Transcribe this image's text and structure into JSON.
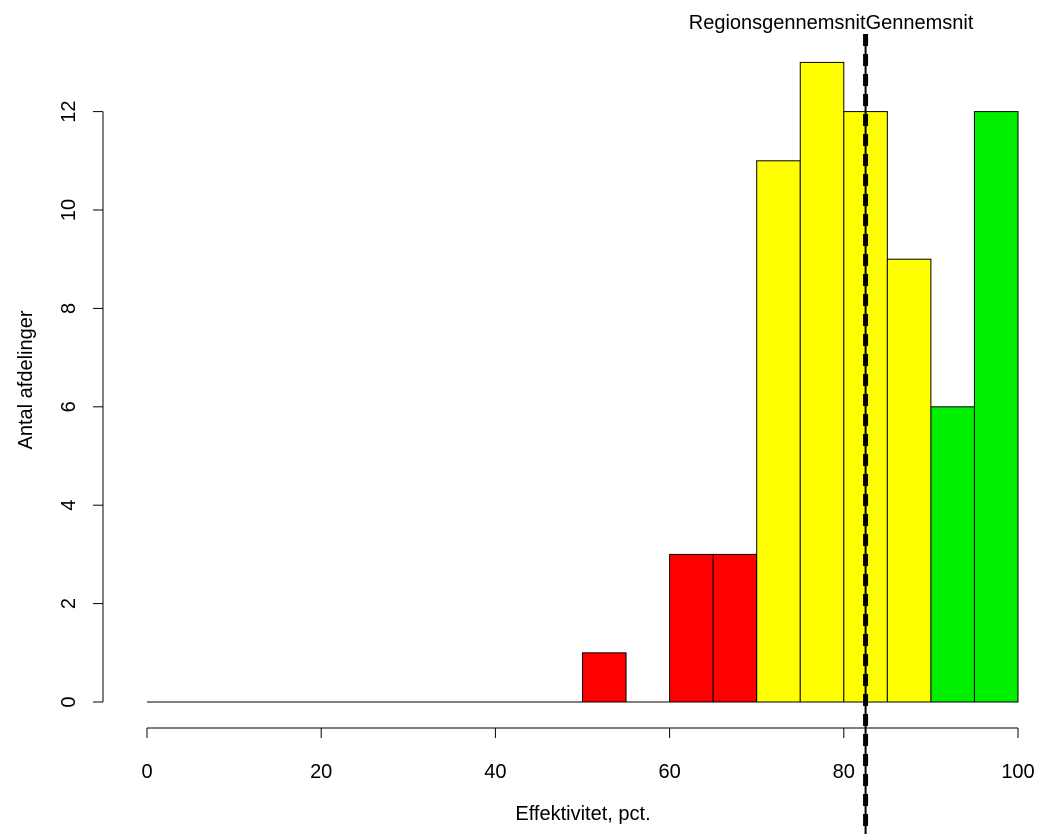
{
  "chart_data": {
    "type": "bar",
    "title": "",
    "xlabel": "Effektivitet, pct.",
    "ylabel": "Antal afdelinger",
    "xlim": [
      0,
      100
    ],
    "ylim": [
      0,
      13
    ],
    "x_ticks": [
      0,
      20,
      40,
      60,
      80,
      100
    ],
    "y_ticks": [
      0,
      2,
      4,
      6,
      8,
      10,
      12
    ],
    "bins": [
      {
        "start": 0,
        "end": 5,
        "count": 0,
        "color": "red"
      },
      {
        "start": 5,
        "end": 10,
        "count": 0,
        "color": "red"
      },
      {
        "start": 10,
        "end": 15,
        "count": 0,
        "color": "red"
      },
      {
        "start": 15,
        "end": 20,
        "count": 0,
        "color": "red"
      },
      {
        "start": 20,
        "end": 25,
        "count": 0,
        "color": "red"
      },
      {
        "start": 25,
        "end": 30,
        "count": 0,
        "color": "red"
      },
      {
        "start": 30,
        "end": 35,
        "count": 0,
        "color": "red"
      },
      {
        "start": 35,
        "end": 40,
        "count": 0,
        "color": "red"
      },
      {
        "start": 40,
        "end": 45,
        "count": 0,
        "color": "red"
      },
      {
        "start": 45,
        "end": 50,
        "count": 0,
        "color": "red"
      },
      {
        "start": 50,
        "end": 55,
        "count": 1,
        "color": "red"
      },
      {
        "start": 55,
        "end": 60,
        "count": 0,
        "color": "red"
      },
      {
        "start": 60,
        "end": 65,
        "count": 3,
        "color": "red"
      },
      {
        "start": 65,
        "end": 70,
        "count": 3,
        "color": "red"
      },
      {
        "start": 70,
        "end": 75,
        "count": 11,
        "color": "yellow"
      },
      {
        "start": 75,
        "end": 80,
        "count": 13,
        "color": "yellow"
      },
      {
        "start": 80,
        "end": 85,
        "count": 12,
        "color": "yellow"
      },
      {
        "start": 85,
        "end": 90,
        "count": 9,
        "color": "yellow"
      },
      {
        "start": 90,
        "end": 95,
        "count": 6,
        "color": "green"
      },
      {
        "start": 95,
        "end": 100,
        "count": 12,
        "color": "green"
      }
    ],
    "colors": {
      "red": "#ff0000",
      "yellow": "#ffff00",
      "green": "#00ee00"
    },
    "reference_lines": [
      {
        "label": "Regionsgennemsnit",
        "x": 82.5,
        "style": "solid"
      },
      {
        "label": "Gennemsnit",
        "x": 82.5,
        "style": "dashed"
      }
    ],
    "grid": false,
    "legend": "none"
  }
}
